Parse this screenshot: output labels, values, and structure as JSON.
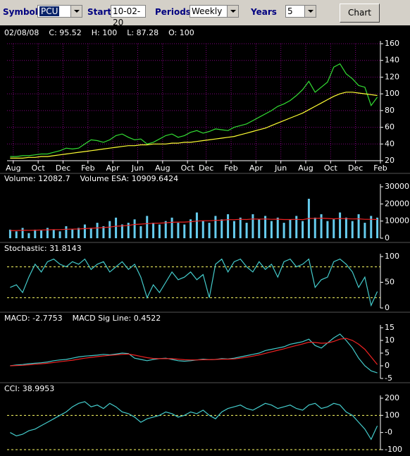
{
  "toolbar": {
    "symbol_label": "Symbol",
    "symbol": "PCU",
    "start_label": "Start",
    "start": "10-02-20",
    "periods_label": "Periods",
    "periods": "Weekly",
    "years_label": "Years",
    "years": "5",
    "button": "Chart"
  },
  "chart_data": [
    {
      "type": "line",
      "header": [
        "02/08/08",
        "C: 95.52",
        "H: 100",
        "L: 87.28",
        "O: 100"
      ],
      "xlim": [
        0,
        60
      ],
      "ylim": [
        20,
        160
      ],
      "yticks": [
        20,
        40,
        60,
        80,
        100,
        120,
        140,
        160
      ],
      "grid": true,
      "xticks": [
        {
          "value": 1,
          "label": "Aug"
        },
        {
          "value": 5,
          "label": "Oct"
        },
        {
          "value": 9,
          "label": "Dec"
        },
        {
          "value": 13,
          "label": "Feb"
        },
        {
          "value": 17,
          "label": "Apr"
        },
        {
          "value": 21,
          "label": "Jun"
        },
        {
          "value": 25,
          "label": "Aug"
        },
        {
          "value": 29,
          "label": "Oct"
        },
        {
          "value": 32,
          "label": "Dec"
        },
        {
          "value": 36,
          "label": "Feb"
        },
        {
          "value": 40,
          "label": "Apr"
        },
        {
          "value": 44,
          "label": "Jun"
        },
        {
          "value": 48,
          "label": "Aug"
        },
        {
          "value": 52,
          "label": "Oct"
        },
        {
          "value": 56,
          "label": "Dec"
        },
        {
          "value": 60,
          "label": "Feb"
        }
      ],
      "series": [
        {
          "color": "#33dd33",
          "values": [
            25,
            25,
            26,
            26,
            27,
            28,
            28,
            30,
            32,
            35,
            34,
            35,
            40,
            45,
            44,
            42,
            45,
            50,
            52,
            48,
            45,
            46,
            40,
            42,
            46,
            50,
            52,
            48,
            50,
            54,
            56,
            53,
            55,
            58,
            57,
            56,
            60,
            62,
            64,
            68,
            72,
            76,
            80,
            85,
            88,
            92,
            98,
            105,
            115,
            102,
            108,
            114,
            132,
            136,
            124,
            118,
            110,
            108,
            86,
            96
          ]
        },
        {
          "color": "#ffff33",
          "values": [
            23,
            23,
            23,
            24,
            24,
            25,
            25,
            26,
            27,
            28,
            29,
            30,
            31,
            32,
            33,
            34,
            35,
            36,
            37,
            38,
            38,
            39,
            39,
            40,
            40,
            40,
            41,
            41,
            42,
            42,
            43,
            44,
            45,
            46,
            47,
            48,
            49,
            51,
            53,
            55,
            57,
            59,
            62,
            65,
            68,
            71,
            74,
            77,
            81,
            85,
            89,
            93,
            97,
            100,
            102,
            102,
            101,
            100,
            99,
            98
          ]
        }
      ]
    },
    {
      "type": "bar",
      "header": [
        "Volume: 12082.7",
        "Volume ESA: 10909.6424"
      ],
      "xlim": [
        0,
        60
      ],
      "ylim": [
        0,
        30000
      ],
      "yticks": [
        0,
        10000,
        20000,
        30000
      ],
      "series": [
        {
          "color": "#66ccee",
          "values": [
            5000,
            4000,
            6000,
            3000,
            5000,
            4500,
            6000,
            5000,
            4000,
            7000,
            5500,
            6000,
            8000,
            6000,
            9000,
            7000,
            10000,
            12000,
            8000,
            9000,
            11000,
            7000,
            13000,
            9000,
            8000,
            10000,
            12000,
            9000,
            8000,
            11000,
            15000,
            10000,
            9000,
            13000,
            11000,
            14000,
            10000,
            12000,
            9000,
            14000,
            11000,
            13000,
            10000,
            12000,
            9000,
            11000,
            13000,
            10000,
            23000,
            12000,
            14000,
            10000,
            11000,
            15000,
            12000,
            10000,
            14000,
            9000,
            13000,
            12000
          ]
        },
        {
          "type": "line",
          "color": "#ee2222",
          "values": [
            4500,
            4500,
            4700,
            4600,
            4700,
            4800,
            4900,
            5000,
            5000,
            5200,
            5300,
            5400,
            5600,
            5800,
            6000,
            6200,
            6500,
            7000,
            7200,
            7500,
            8000,
            8200,
            8500,
            8700,
            8800,
            9000,
            9300,
            9400,
            9400,
            9600,
            10000,
            10200,
            10200,
            10400,
            10500,
            10800,
            10800,
            11000,
            10900,
            11200,
            11100,
            11200,
            11000,
            11100,
            10900,
            10900,
            11000,
            10800,
            11500,
            11600,
            11700,
            11500,
            11300,
            11500,
            11400,
            11200,
            11300,
            11000,
            11000,
            10900
          ]
        }
      ]
    },
    {
      "type": "line",
      "header": [
        "Stochastic: 31.8143"
      ],
      "xlim": [
        0,
        60
      ],
      "ylim": [
        0,
        100
      ],
      "yticks": [
        0,
        50,
        100
      ],
      "ref_lines": [
        80,
        20
      ],
      "ref_color": "#ffff66",
      "series": [
        {
          "color": "#44cccc",
          "values": [
            40,
            45,
            30,
            60,
            85,
            70,
            90,
            95,
            85,
            80,
            90,
            85,
            95,
            75,
            85,
            90,
            70,
            80,
            90,
            75,
            85,
            60,
            20,
            45,
            30,
            50,
            70,
            55,
            60,
            70,
            55,
            65,
            20,
            85,
            95,
            70,
            90,
            95,
            80,
            70,
            90,
            75,
            85,
            60,
            90,
            95,
            80,
            85,
            95,
            40,
            55,
            60,
            90,
            95,
            85,
            70,
            40,
            60,
            5,
            32
          ]
        }
      ]
    },
    {
      "type": "line",
      "header": [
        "MACD: -2.7753",
        "MACD Sig Line: 0.4522"
      ],
      "xlim": [
        0,
        60
      ],
      "ylim": [
        -5,
        15
      ],
      "yticks": [
        -5,
        0,
        5,
        10,
        15
      ],
      "series": [
        {
          "color": "#44cccc",
          "values": [
            0,
            0.3,
            0.5,
            0.8,
            1,
            1.2,
            1.5,
            2,
            2.3,
            2.5,
            3,
            3.5,
            3.8,
            4,
            4.2,
            4.5,
            4.3,
            4.6,
            5,
            4.8,
            3,
            2.5,
            2,
            2.5,
            2.8,
            3,
            2.5,
            2,
            1.8,
            2,
            2.3,
            2.6,
            2.4,
            2.5,
            2.8,
            2.7,
            3,
            3.5,
            4,
            4.5,
            5,
            6,
            6.5,
            7,
            7.5,
            8.5,
            9,
            9.5,
            10.5,
            8,
            7,
            9,
            11,
            12.5,
            10,
            7,
            3,
            0,
            -2,
            -2.8
          ]
        },
        {
          "color": "#ee2222",
          "values": [
            0,
            0.1,
            0.2,
            0.4,
            0.6,
            0.8,
            1,
            1.3,
            1.6,
            1.9,
            2.2,
            2.6,
            3,
            3.3,
            3.6,
            3.9,
            4.1,
            4.3,
            4.5,
            4.6,
            4.2,
            3.7,
            3.2,
            2.9,
            2.8,
            2.8,
            2.8,
            2.6,
            2.4,
            2.3,
            2.3,
            2.4,
            2.4,
            2.5,
            2.6,
            2.6,
            2.7,
            3,
            3.4,
            3.8,
            4.3,
            4.9,
            5.5,
            6.1,
            6.7,
            7.4,
            8,
            8.6,
            9.3,
            9.2,
            8.9,
            9,
            9.6,
            10.5,
            10.8,
            10,
            8.5,
            6.5,
            3.5,
            0.5
          ]
        }
      ]
    },
    {
      "type": "line",
      "header": [
        "CCI: 38.9953"
      ],
      "xlim": [
        0,
        60
      ],
      "ylim": [
        -100,
        200
      ],
      "yticks": [
        -100,
        {
          "value": 0,
          "label": "-0"
        },
        100,
        200
      ],
      "ref_lines": [
        100,
        -100
      ],
      "ref_color": "#ffff66",
      "series": [
        {
          "color": "#44cccc",
          "values": [
            0,
            -20,
            -10,
            10,
            20,
            40,
            60,
            80,
            100,
            120,
            150,
            170,
            180,
            150,
            160,
            140,
            170,
            150,
            120,
            110,
            90,
            60,
            80,
            90,
            100,
            120,
            110,
            90,
            100,
            120,
            110,
            130,
            100,
            80,
            120,
            140,
            150,
            160,
            140,
            130,
            150,
            170,
            160,
            140,
            150,
            160,
            140,
            130,
            160,
            170,
            140,
            150,
            170,
            160,
            120,
            100,
            60,
            20,
            -40,
            39
          ]
        }
      ]
    }
  ]
}
